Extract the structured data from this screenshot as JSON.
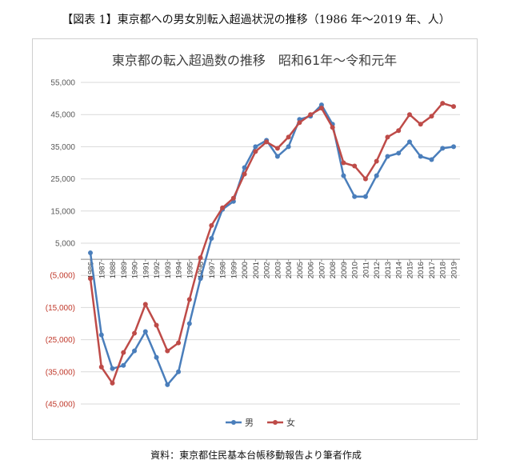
{
  "figure_caption": "【図表 1】東京都への男女別転入超過状況の推移（1986 年〜2019 年、人）",
  "source_note": "資料：東京都住民基本台帳移動報告より筆者作成",
  "chart_data": {
    "type": "line",
    "title": "東京都の転入超過数の推移　昭和61年〜令和元年",
    "xlabel": "",
    "ylabel": "",
    "ylim": [
      -45000,
      55000
    ],
    "y_ticks": [
      55000,
      45000,
      35000,
      25000,
      15000,
      5000,
      -5000,
      -15000,
      -25000,
      -35000,
      -45000
    ],
    "y_tick_labels": [
      "55,000",
      "45,000",
      "35,000",
      "25,000",
      "15,000",
      "5,000",
      "(5,000)",
      "(15,000)",
      "(25,000)",
      "(35,000)",
      "(45,000)"
    ],
    "categories": [
      "1986",
      "1987",
      "1988",
      "1989",
      "1990",
      "1991",
      "1992",
      "1993",
      "1994",
      "1995",
      "1996",
      "1997",
      "1998",
      "1999",
      "2000",
      "2001",
      "2002",
      "2003",
      "2004",
      "2005",
      "2006",
      "2007",
      "2008",
      "2009",
      "2010",
      "2011",
      "2012",
      "2013",
      "2014",
      "2015",
      "2016",
      "2017",
      "2018",
      "2019"
    ],
    "grid": true,
    "legend_position": "bottom",
    "series": [
      {
        "name": "男",
        "color": "#4a7ebb",
        "values": [
          2000,
          -23500,
          -34000,
          -33000,
          -28500,
          -22500,
          -30500,
          -39000,
          -35000,
          -20000,
          -6000,
          6500,
          15500,
          18000,
          28500,
          35000,
          37000,
          32000,
          35000,
          43500,
          44500,
          48000,
          42000,
          26000,
          19500,
          19500,
          26000,
          32000,
          33000,
          36500,
          32000,
          31000,
          34500,
          35000
        ]
      },
      {
        "name": "女",
        "color": "#be4b48",
        "values": [
          -6000,
          -33500,
          -38500,
          -29000,
          -23000,
          -14000,
          -20500,
          -28500,
          -26000,
          -12500,
          500,
          10500,
          16000,
          19000,
          26500,
          33500,
          36500,
          34500,
          38000,
          42500,
          45000,
          47000,
          41000,
          30000,
          29000,
          25000,
          30500,
          38000,
          40000,
          45000,
          42000,
          44500,
          48500,
          47500
        ]
      }
    ]
  }
}
